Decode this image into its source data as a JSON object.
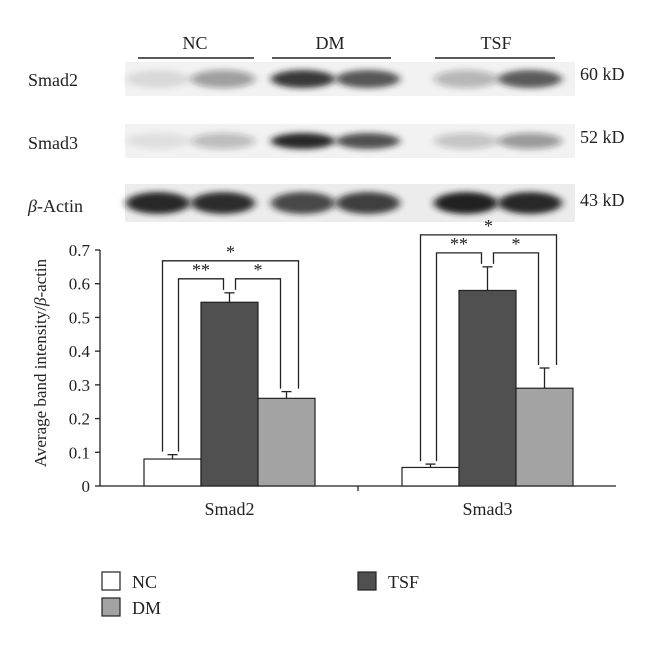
{
  "blot": {
    "groups": [
      "NC",
      "DM",
      "TSF"
    ],
    "rows": [
      {
        "name": "Smad2",
        "size": "60 kD",
        "intensities": [
          0.1,
          0.38,
          0.85,
          0.72,
          0.28,
          0.7
        ]
      },
      {
        "name": "Smad3",
        "size": "52 kD",
        "intensities": [
          0.08,
          0.25,
          0.95,
          0.75,
          0.22,
          0.4
        ]
      },
      {
        "name_prefix": "β",
        "name": "-Actin",
        "size": "43 kD",
        "intensities": [
          0.92,
          0.9,
          0.78,
          0.82,
          0.98,
          0.95
        ]
      }
    ]
  },
  "chart_data": {
    "type": "bar",
    "categories": [
      "Smad2",
      "Smad3"
    ],
    "series": [
      {
        "name": "NC",
        "values": [
          0.08,
          0.055
        ],
        "errors": [
          0.013,
          0.01
        ],
        "color": "#ffffff"
      },
      {
        "name": "TSF",
        "values": [
          0.545,
          0.58
        ],
        "errors": [
          0.028,
          0.07
        ],
        "color": "#505050"
      },
      {
        "name": "DM",
        "values": [
          0.26,
          0.29
        ],
        "errors": [
          0.02,
          0.06
        ],
        "color": "#a3a3a3"
      }
    ],
    "ylabel_prefix": "Average band intensity/",
    "ylabel_italic": "β",
    "ylabel_suffix": "-actin",
    "ylim": [
      0,
      0.7
    ],
    "yticks": [
      "0",
      "0.1",
      "0.2",
      "0.3",
      "0.4",
      "0.5",
      "0.6",
      "0.7"
    ],
    "significance": [
      {
        "category": "Smad2",
        "pair": [
          "NC",
          "DM"
        ],
        "label": "*"
      },
      {
        "category": "Smad2",
        "pair": [
          "NC",
          "TSF"
        ],
        "label": "**"
      },
      {
        "category": "Smad2",
        "pair": [
          "TSF",
          "DM"
        ],
        "label": "*"
      },
      {
        "category": "Smad3",
        "pair": [
          "NC",
          "DM"
        ],
        "label": "*"
      },
      {
        "category": "Smad3",
        "pair": [
          "NC",
          "TSF"
        ],
        "label": "**"
      },
      {
        "category": "Smad3",
        "pair": [
          "TSF",
          "DM"
        ],
        "label": "*"
      }
    ],
    "legend": [
      {
        "name": "NC",
        "color": "#ffffff"
      },
      {
        "name": "TSF",
        "color": "#505050"
      },
      {
        "name": "DM",
        "color": "#a3a3a3"
      }
    ],
    "legend_position": "bottom"
  },
  "colors": {
    "axis": "#222222",
    "blot_band": "#1a1a1a"
  }
}
